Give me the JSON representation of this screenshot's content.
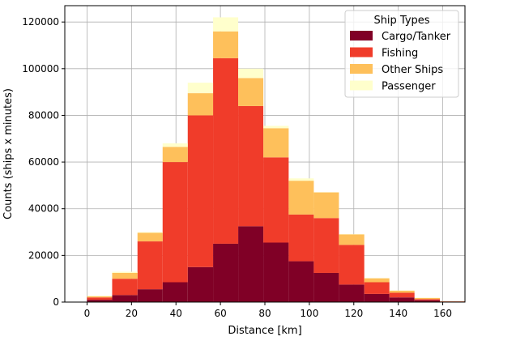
{
  "chart_data": {
    "type": "bar",
    "stacked": true,
    "xlabel": "Distance [km]",
    "ylabel": "Counts (ships x minutes)",
    "xlim": [
      -10,
      170
    ],
    "ylim": [
      0,
      127000
    ],
    "xticks": [
      0,
      20,
      40,
      60,
      80,
      100,
      120,
      140,
      160
    ],
    "yticks": [
      0,
      20000,
      40000,
      60000,
      80000,
      100000,
      120000
    ],
    "bin_edges": [
      0,
      11.3,
      22.7,
      34,
      45.3,
      56.7,
      68,
      79.3,
      90.7,
      102,
      113.3,
      124.7,
      136,
      147.3,
      158.7,
      170
    ],
    "grid": true,
    "legend": {
      "title": "Ship Types",
      "position": "top-right"
    },
    "series": [
      {
        "name": "Cargo/Tanker",
        "color": "#800026",
        "values": [
          1000,
          3000,
          5500,
          8500,
          15000,
          25000,
          32500,
          25500,
          17500,
          12500,
          7500,
          3500,
          2000,
          800,
          200
        ]
      },
      {
        "name": "Fishing",
        "color": "#f03c2a",
        "values": [
          1000,
          7000,
          20500,
          51500,
          65000,
          79500,
          51500,
          36500,
          20000,
          23500,
          17000,
          5000,
          2000,
          500,
          100
        ]
      },
      {
        "name": "Other Ships",
        "color": "#fec05b",
        "values": [
          500,
          2500,
          3700,
          6500,
          9500,
          11500,
          12000,
          12500,
          14500,
          11000,
          4500,
          1700,
          900,
          500,
          100
        ]
      },
      {
        "name": "Passenger",
        "color": "#ffffcc",
        "values": [
          200,
          500,
          300,
          1500,
          4500,
          6000,
          4000,
          1000,
          1000,
          100,
          100,
          100,
          100,
          100,
          0
        ]
      }
    ]
  }
}
